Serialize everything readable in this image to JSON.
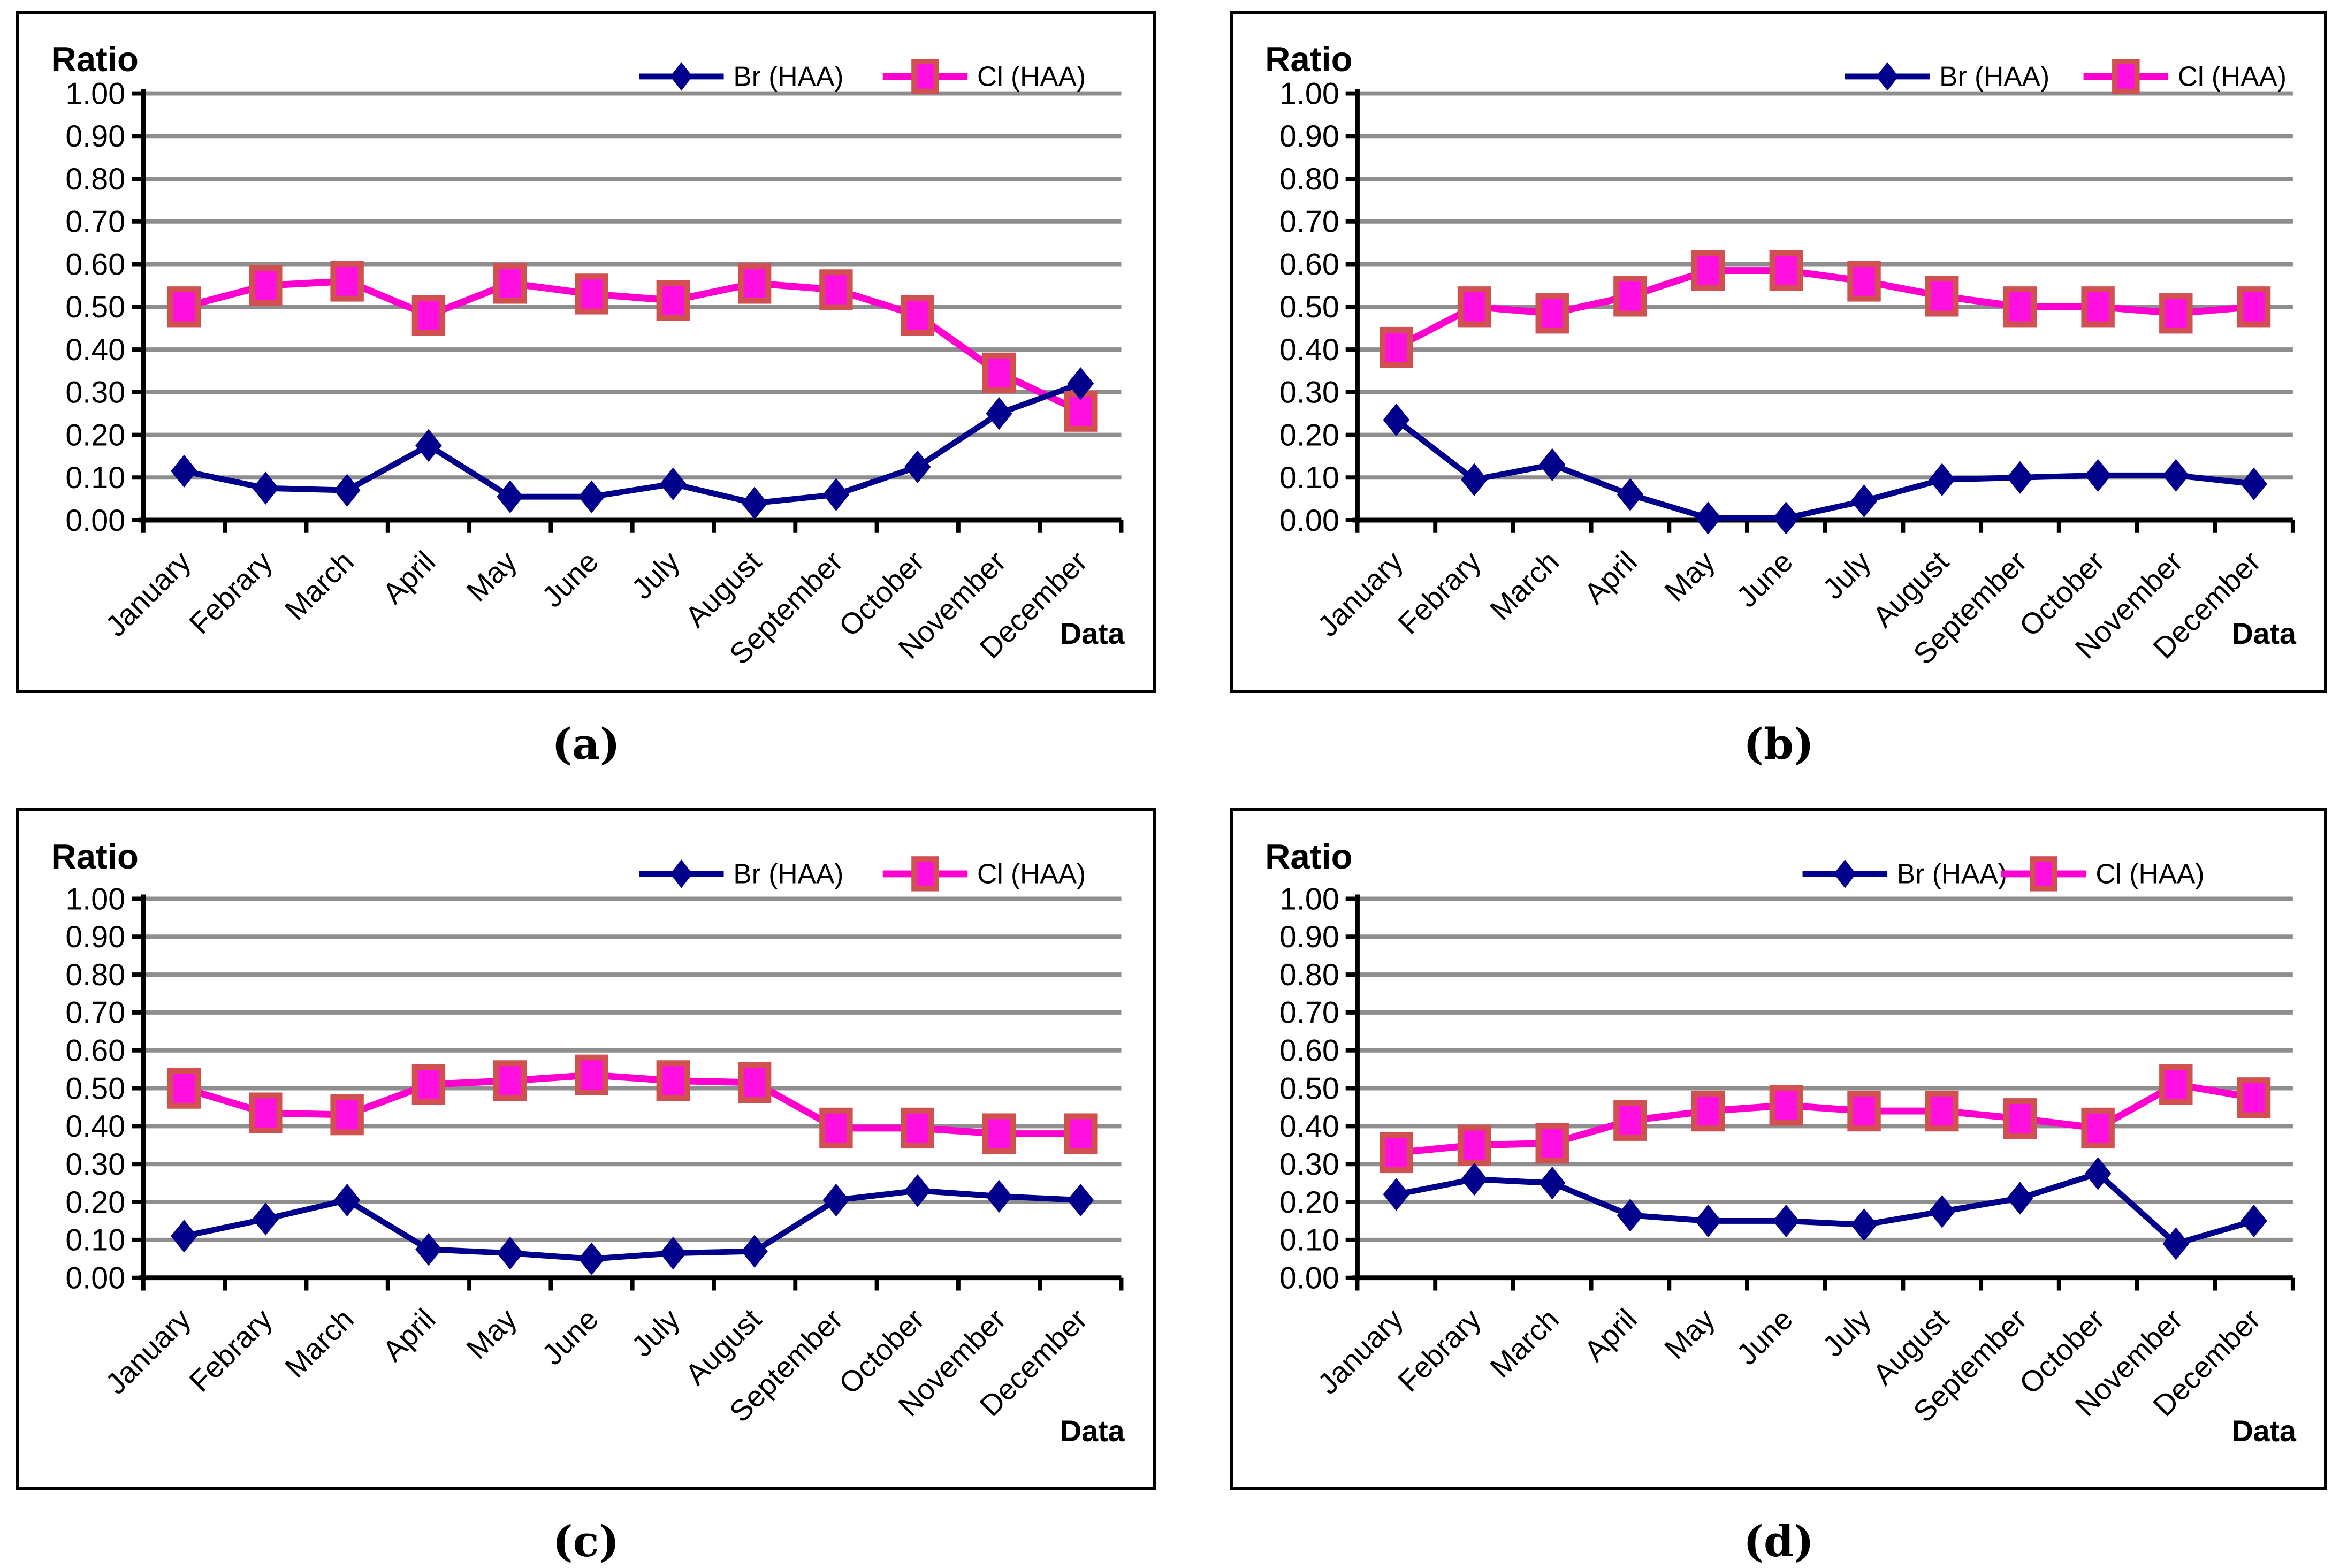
{
  "ui": {
    "y_axis_title": "Ratio",
    "x_axis_title": "Data",
    "legend": {
      "br_label": "Br (HAA)",
      "cl_label": "Cl (HAA)"
    },
    "captions": [
      "(a)",
      "(b)",
      "(c)",
      "(d)"
    ],
    "y_tick_labels": [
      "1.00",
      "0.90",
      "0.80",
      "0.70",
      "0.60",
      "0.50",
      "0.40",
      "0.30",
      "0.20",
      "0.10",
      "0.00"
    ],
    "colors": {
      "br_line": "#00008B",
      "cl_line": "#FF00D0",
      "cl_marker_fill": "#FF10E0",
      "cl_marker_border": "#D15050",
      "gridline": "#8E8E8E",
      "axis": "#000000"
    }
  },
  "chart_data": [
    {
      "id": "a",
      "type": "line",
      "title": "",
      "ylabel": "Ratio",
      "xlabel": "Data",
      "ylim": [
        0,
        1
      ],
      "y_tick_step": 0.1,
      "grid": true,
      "legend_position": "top-right",
      "categories": [
        "January",
        "Febrary",
        "March",
        "April",
        "May",
        "June",
        "July",
        "August",
        "September",
        "October",
        "November",
        "December"
      ],
      "series": [
        {
          "name": "Br (HAA)",
          "marker": "diamond",
          "color": "#00008B",
          "values": [
            0.115,
            0.075,
            0.07,
            0.175,
            0.055,
            0.055,
            0.085,
            0.04,
            0.06,
            0.125,
            0.25,
            0.32
          ]
        },
        {
          "name": "Cl (HAA)",
          "marker": "square",
          "color": "#FF00D0",
          "values": [
            0.5,
            0.55,
            0.56,
            0.48,
            0.555,
            0.53,
            0.515,
            0.555,
            0.54,
            0.48,
            0.345,
            0.255
          ]
        }
      ]
    },
    {
      "id": "b",
      "type": "line",
      "title": "",
      "ylabel": "Ratio",
      "xlabel": "Data",
      "ylim": [
        0,
        1
      ],
      "y_tick_step": 0.1,
      "grid": true,
      "legend_position": "top-right",
      "categories": [
        "January",
        "Febrary",
        "March",
        "April",
        "May",
        "June",
        "July",
        "August",
        "September",
        "October",
        "November",
        "December"
      ],
      "series": [
        {
          "name": "Br (HAA)",
          "marker": "diamond",
          "color": "#00008B",
          "values": [
            0.235,
            0.095,
            0.13,
            0.06,
            0.005,
            0.005,
            0.045,
            0.095,
            0.1,
            0.105,
            0.105,
            0.085
          ]
        },
        {
          "name": "Cl (HAA)",
          "marker": "square",
          "color": "#FF00D0",
          "values": [
            0.405,
            0.5,
            0.485,
            0.525,
            0.585,
            0.585,
            0.56,
            0.525,
            0.5,
            0.5,
            0.485,
            0.5
          ]
        }
      ]
    },
    {
      "id": "c",
      "type": "line",
      "title": "",
      "ylabel": "Ratio",
      "xlabel": "Data",
      "ylim": [
        0,
        1
      ],
      "y_tick_step": 0.1,
      "grid": true,
      "legend_position": "top-right",
      "categories": [
        "January",
        "Febrary",
        "March",
        "April",
        "May",
        "June",
        "July",
        "August",
        "September",
        "October",
        "November",
        "December"
      ],
      "series": [
        {
          "name": "Br (HAA)",
          "marker": "diamond",
          "color": "#00008B",
          "values": [
            0.11,
            0.155,
            0.205,
            0.075,
            0.065,
            0.05,
            0.065,
            0.07,
            0.205,
            0.23,
            0.215,
            0.205
          ]
        },
        {
          "name": "Cl (HAA)",
          "marker": "square",
          "color": "#FF00D0",
          "values": [
            0.5,
            0.435,
            0.43,
            0.51,
            0.52,
            0.535,
            0.52,
            0.515,
            0.395,
            0.395,
            0.38,
            0.38
          ]
        }
      ]
    },
    {
      "id": "d",
      "type": "line",
      "title": "",
      "ylabel": "Ratio",
      "xlabel": "Data",
      "ylim": [
        0,
        1
      ],
      "y_tick_step": 0.1,
      "grid": true,
      "legend_position": "top-right",
      "categories": [
        "January",
        "Febrary",
        "March",
        "April",
        "May",
        "June",
        "July",
        "August",
        "September",
        "October",
        "November",
        "December"
      ],
      "series": [
        {
          "name": "Br (HAA)",
          "marker": "diamond",
          "color": "#00008B",
          "values": [
            0.22,
            0.26,
            0.25,
            0.165,
            0.15,
            0.15,
            0.14,
            0.175,
            0.21,
            0.275,
            0.09,
            0.15
          ]
        },
        {
          "name": "Cl (HAA)",
          "marker": "square",
          "color": "#FF00D0",
          "values": [
            0.33,
            0.35,
            0.355,
            0.415,
            0.44,
            0.455,
            0.44,
            0.44,
            0.42,
            0.395,
            0.51,
            0.475
          ]
        }
      ]
    }
  ]
}
